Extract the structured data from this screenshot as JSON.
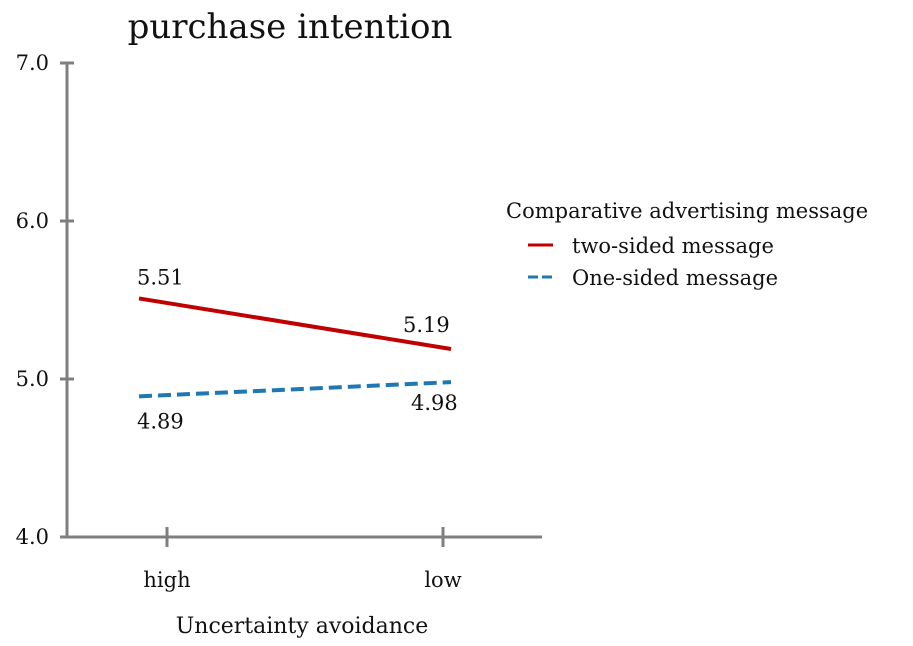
{
  "chart_data": {
    "type": "line",
    "title": "purchase intention",
    "xlabel": "Uncertainty avoidance",
    "ylabel": "",
    "categories": [
      "high",
      "low"
    ],
    "ylim": [
      4.0,
      7.0
    ],
    "yticks": [
      "4.0",
      "5.0",
      "6.0",
      "7.0"
    ],
    "grid": false,
    "legend_position": "right",
    "legend_title": "Comparative advertising message",
    "series": [
      {
        "name": "two-sided message",
        "values": [
          5.51,
          5.19
        ],
        "labels": [
          "5.51",
          "5.19"
        ],
        "color": "#c00000",
        "line_style": "solid"
      },
      {
        "name": "One-sided message",
        "values": [
          4.89,
          4.98
        ],
        "labels": [
          "4.89",
          "4.98"
        ],
        "color": "#1f77b4",
        "line_style": "dashed"
      }
    ]
  }
}
